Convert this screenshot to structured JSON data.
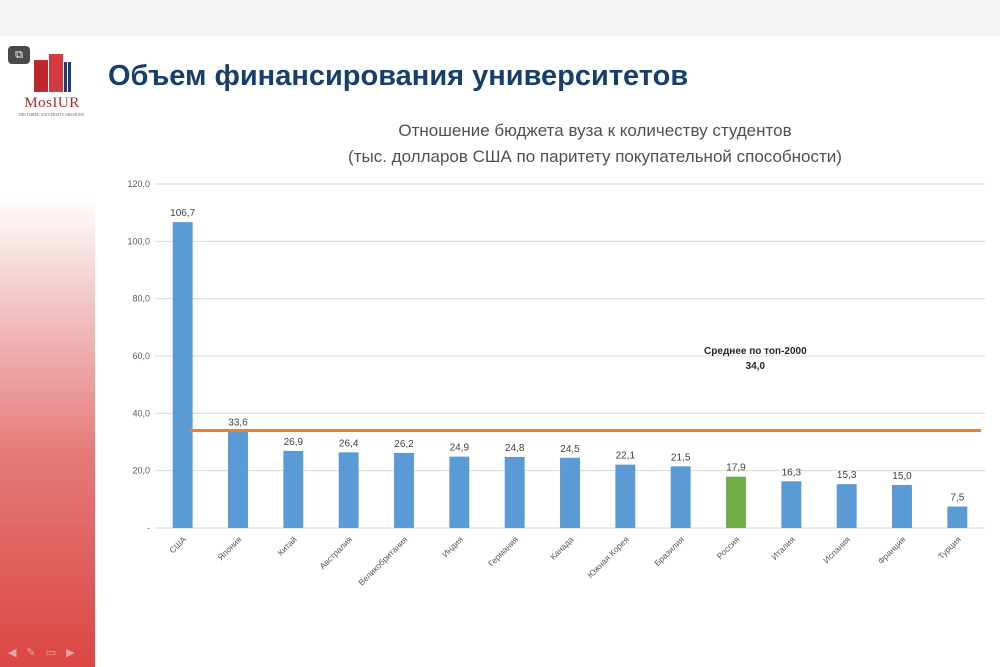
{
  "slide": {
    "title": "Объем финансирования университетов",
    "logo_text": "MosIUR",
    "logo_subtext": "THE THREE UNIVERSITY MISSIONS",
    "corner_button_icon": "screen-icon",
    "bottom_icons": [
      "arrow-left-icon",
      "pen-icon",
      "slide-icon",
      "arrow-right-icon"
    ]
  },
  "chart_data": {
    "type": "bar",
    "title_line1": "Отношение бюджета вуза к количеству студентов",
    "title_line2": "(тыс. долларов США по паритету покупательной способности)",
    "categories": [
      "США",
      "Япония",
      "Китай",
      "Австралия",
      "Великобритания",
      "Индия",
      "Германия",
      "Канада",
      "Южная Корея",
      "Бразилия",
      "Россия",
      "Италия",
      "Испания",
      "Франция",
      "Турция"
    ],
    "values": [
      106.7,
      33.6,
      26.9,
      26.4,
      26.2,
      24.9,
      24.8,
      24.5,
      22.1,
      21.5,
      17.9,
      16.3,
      15.3,
      15.0,
      7.5
    ],
    "value_labels": [
      "106,7",
      "33,6",
      "26,9",
      "26,4",
      "26,2",
      "24,9",
      "24,8",
      "24,5",
      "22,1",
      "21,5",
      "17,9",
      "16,3",
      "15,3",
      "15,0",
      "7,5"
    ],
    "ylim": [
      0,
      120
    ],
    "yticks": [
      0,
      20,
      40,
      60,
      80,
      100,
      120
    ],
    "ytick_labels": [
      "-",
      "20,0",
      "40,0",
      "60,0",
      "80,0",
      "100,0",
      "120,0"
    ],
    "grid": true,
    "bar_color": "#5b9bd5",
    "highlight_category": "Россия",
    "highlight_color": "#70ad47",
    "reference_line": {
      "value": 34.0,
      "label": "Среднее по топ-2000",
      "value_label": "34,0",
      "color": "#ed7d31"
    }
  }
}
